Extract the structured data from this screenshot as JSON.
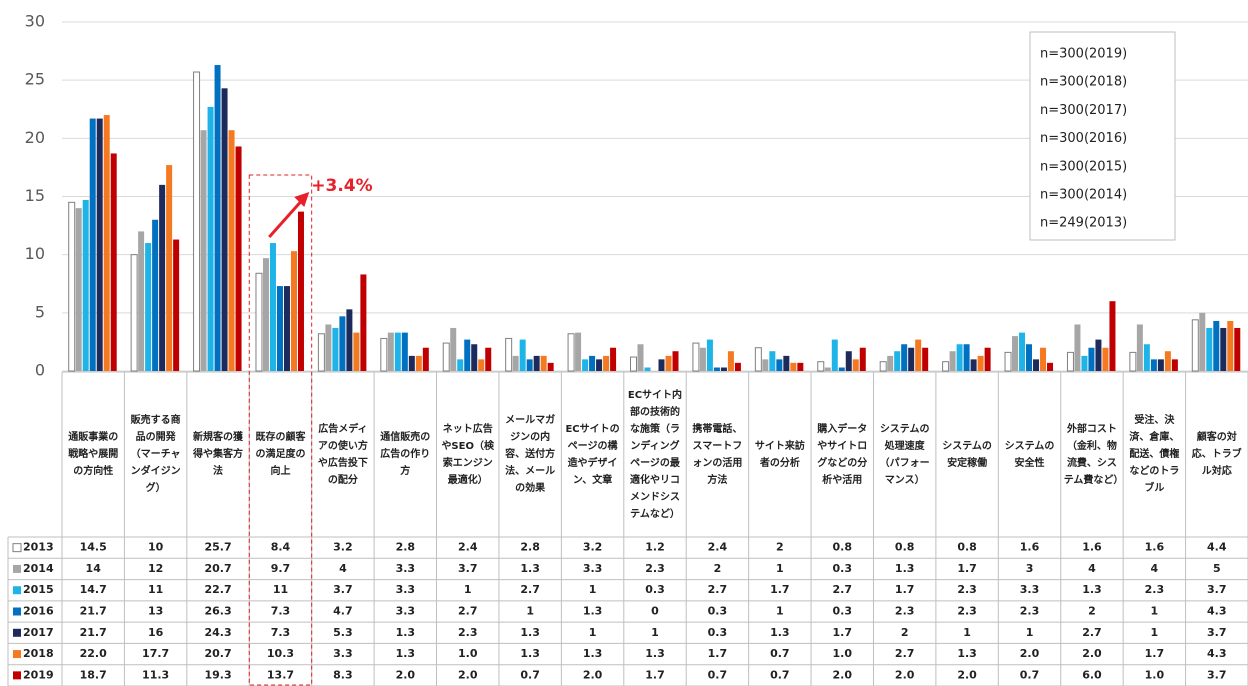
{
  "chart_data": {
    "type": "bar",
    "categories": [
      "通販事業の戦略や展開の方向性",
      "販売する商品の開発（マーチャンダイジング）",
      "新規客の獲得や集客方法",
      "既存の顧客の満足度の向上",
      "広告メディアの使い方や広告投下の配分",
      "通信販売の広告の作り方",
      "ネット広告やSEO（検索エンジン最適化）",
      "メールマガジンの内容、送付方法、メールの効果",
      "ECサイトのページの構造やデザイン、文章",
      "ECサイト内部の技術的な施策（ランディングページの最適化やリコメンドシステムなど）",
      "携帯電話、スマートフォンの活用方法",
      "サイト来訪者の分析",
      "購入データやサイトログなどの分析や活用",
      "システムの処理速度（パフォーマンス）",
      "システムの安定稼働",
      "システムの安全性",
      "外部コスト（金利、物流費、システム費など）",
      "受注、決済、倉庫、配送、債権などのトラブル",
      "顧客の対応、トラブル対応"
    ],
    "series": [
      {
        "name": "2013",
        "color": "#ffffff",
        "values": [
          14.5,
          10,
          25.7,
          8.4,
          3.2,
          2.8,
          2.4,
          2.8,
          3.2,
          1.2,
          2.4,
          2,
          0.8,
          0.8,
          0.8,
          1.6,
          1.6,
          1.6,
          4.4
        ],
        "value_labels": [
          "14.5",
          "10",
          "25.7",
          "8.4",
          "3.2",
          "2.8",
          "2.4",
          "2.8",
          "3.2",
          "1.2",
          "2.4",
          "2",
          "0.8",
          "0.8",
          "0.8",
          "1.6",
          "1.6",
          "1.6",
          "4.4"
        ]
      },
      {
        "name": "2014",
        "color": "#a6a6a6",
        "values": [
          14,
          12,
          20.7,
          9.7,
          4,
          3.3,
          3.7,
          1.3,
          3.3,
          2.3,
          2,
          1,
          0.3,
          1.3,
          1.7,
          3,
          4,
          4,
          5
        ],
        "value_labels": [
          "14",
          "12",
          "20.7",
          "9.7",
          "4",
          "3.3",
          "3.7",
          "1.3",
          "3.3",
          "2.3",
          "2",
          "1",
          "0.3",
          "1.3",
          "1.7",
          "3",
          "4",
          "4",
          "5"
        ]
      },
      {
        "name": "2015",
        "color": "#1fb4e8",
        "values": [
          14.7,
          11,
          22.7,
          11,
          3.7,
          3.3,
          1,
          2.7,
          1,
          0.3,
          2.7,
          1.7,
          2.7,
          1.7,
          2.3,
          3.3,
          1.3,
          2.3,
          3.7
        ],
        "value_labels": [
          "14.7",
          "11",
          "22.7",
          "11",
          "3.7",
          "3.3",
          "1",
          "2.7",
          "1",
          "0.3",
          "2.7",
          "1.7",
          "2.7",
          "1.7",
          "2.3",
          "3.3",
          "1.3",
          "2.3",
          "3.7"
        ]
      },
      {
        "name": "2016",
        "color": "#0070c0",
        "values": [
          21.7,
          13,
          26.3,
          7.3,
          4.7,
          3.3,
          2.7,
          1,
          1.3,
          0,
          0.3,
          1,
          0.3,
          2.3,
          2.3,
          2.3,
          2,
          1,
          4.3
        ],
        "value_labels": [
          "21.7",
          "13",
          "26.3",
          "7.3",
          "4.7",
          "3.3",
          "2.7",
          "1",
          "1.3",
          "0",
          "0.3",
          "1",
          "0.3",
          "2.3",
          "2.3",
          "2.3",
          "2",
          "1",
          "4.3"
        ]
      },
      {
        "name": "2017",
        "color": "#1c2a5c",
        "values": [
          21.7,
          16,
          24.3,
          7.3,
          5.3,
          1.3,
          2.3,
          1.3,
          1,
          1,
          0.3,
          1.3,
          1.7,
          2,
          1,
          1,
          2.7,
          1,
          3.7
        ],
        "value_labels": [
          "21.7",
          "16",
          "24.3",
          "7.3",
          "5.3",
          "1.3",
          "2.3",
          "1.3",
          "1",
          "1",
          "0.3",
          "1.3",
          "1.7",
          "2",
          "1",
          "1",
          "2.7",
          "1",
          "3.7"
        ]
      },
      {
        "name": "2018",
        "color": "#f47920",
        "values": [
          22,
          17.7,
          20.7,
          10.3,
          3.3,
          1.3,
          1,
          1.3,
          1.3,
          1.3,
          1.7,
          0.7,
          1,
          2.7,
          1.3,
          2,
          2,
          1.7,
          4.3
        ],
        "value_labels": [
          "22.0",
          "17.7",
          "20.7",
          "10.3",
          "3.3",
          "1.3",
          "1.0",
          "1.3",
          "1.3",
          "1.3",
          "1.7",
          "0.7",
          "1.0",
          "2.7",
          "1.3",
          "2.0",
          "2.0",
          "1.7",
          "4.3"
        ]
      },
      {
        "name": "2019",
        "color": "#c00000",
        "values": [
          18.7,
          11.3,
          19.3,
          13.7,
          8.3,
          2,
          2,
          0.7,
          2,
          1.7,
          0.7,
          0.7,
          2,
          2,
          2,
          0.7,
          6,
          1,
          3.7
        ],
        "value_labels": [
          "18.7",
          "11.3",
          "19.3",
          "13.7",
          "8.3",
          "2.0",
          "2.0",
          "0.7",
          "2.0",
          "1.7",
          "0.7",
          "0.7",
          "2.0",
          "2.0",
          "2.0",
          "0.7",
          "6.0",
          "1.0",
          "3.7"
        ]
      }
    ],
    "ylim": [
      0,
      30
    ],
    "yticks": [
      0,
      5,
      10,
      15,
      20,
      25,
      30
    ],
    "grid": true,
    "sample_sizes": [
      "n=300(2019)",
      "n=300(2018)",
      "n=300(2017)",
      "n=300(2016)",
      "n=300(2015)",
      "n=300(2014)",
      "n=249(2013)"
    ],
    "annotations": [
      "+3.4%"
    ]
  }
}
